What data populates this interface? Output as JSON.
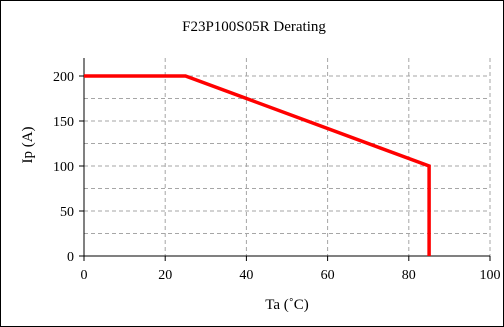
{
  "chart_data": {
    "type": "line",
    "title": "F23P100S05R Derating",
    "xlabel": "Ta (˚C)",
    "ylabel": "Ip (A)",
    "xlim": [
      0,
      100
    ],
    "ylim": [
      0,
      220
    ],
    "x_ticks": [
      0,
      20,
      40,
      60,
      80,
      100
    ],
    "y_ticks": [
      0,
      50,
      100,
      150,
      200
    ],
    "grid": true,
    "legend": "none",
    "series": [
      {
        "color": "#ff0000",
        "points": [
          {
            "x": 0,
            "y": 200
          },
          {
            "x": 25,
            "y": 200
          },
          {
            "x": 85,
            "y": 100
          },
          {
            "x": 85,
            "y": 0
          }
        ]
      }
    ]
  }
}
